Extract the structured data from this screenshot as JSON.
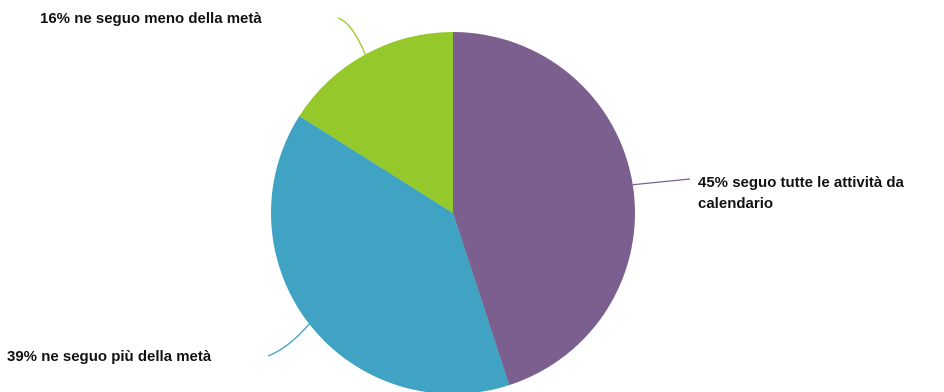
{
  "chart_data": {
    "type": "pie",
    "title": "",
    "slices": [
      {
        "label": "45% seguo tutte le attività da calendario",
        "value": 45,
        "color": "#7b608f"
      },
      {
        "label": "39% ne seguo più della metà",
        "value": 39,
        "color": "#40a3c3"
      },
      {
        "label": "16% ne seguo meno della metà",
        "value": 16,
        "color": "#95c82b"
      }
    ],
    "start_angle_deg": 0,
    "direction": "clockwise",
    "legend": "none"
  }
}
